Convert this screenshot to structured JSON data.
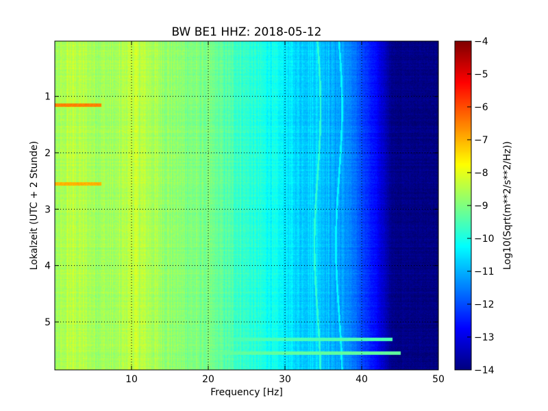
{
  "chart_data": {
    "type": "heatmap",
    "title": "BW BE1 HHZ: 2018-05-12",
    "xlabel": "Frequency [Hz]",
    "ylabel": "Lokalzeit (UTC + 2 Stunde)",
    "xlim": [
      0,
      50
    ],
    "ylim": [
      5.85,
      0.02
    ],
    "x_ticks": [
      10,
      20,
      30,
      40,
      50
    ],
    "x_tick_labels": [
      "10",
      "20",
      "30",
      "40",
      "50"
    ],
    "y_ticks": [
      1,
      2,
      3,
      4,
      5
    ],
    "y_tick_labels": [
      "1",
      "2",
      "3",
      "4",
      "5"
    ],
    "y_inverted": true,
    "grid": true,
    "colormap": "jet",
    "colorbar": {
      "label": "Log10(Sqrt(m**2/s**2/Hz))",
      "range": [
        -14,
        -4
      ],
      "ticks": [
        -4,
        -5,
        -6,
        -7,
        -8,
        -9,
        -10,
        -11,
        -12,
        -13,
        -14
      ],
      "tick_labels": [
        "−4",
        "−5",
        "−6",
        "−7",
        "−8",
        "−9",
        "−10",
        "−11",
        "−12",
        "−13",
        "−14"
      ]
    },
    "frequency_profile": [
      {
        "freq": 0,
        "value": -8.8
      },
      {
        "freq": 2,
        "value": -8.4
      },
      {
        "freq": 5,
        "value": -8.6
      },
      {
        "freq": 8,
        "value": -8.7
      },
      {
        "freq": 10,
        "value": -8.3
      },
      {
        "freq": 12,
        "value": -8.5
      },
      {
        "freq": 15,
        "value": -8.8
      },
      {
        "freq": 18,
        "value": -9.0
      },
      {
        "freq": 20,
        "value": -9.1
      },
      {
        "freq": 23,
        "value": -9.5
      },
      {
        "freq": 26,
        "value": -9.9
      },
      {
        "freq": 28,
        "value": -10.1
      },
      {
        "freq": 30,
        "value": -10.4
      },
      {
        "freq": 32,
        "value": -10.7
      },
      {
        "freq": 34,
        "value": -10.6
      },
      {
        "freq": 36,
        "value": -11.0
      },
      {
        "freq": 38,
        "value": -11.3
      },
      {
        "freq": 40,
        "value": -12.0
      },
      {
        "freq": 42,
        "value": -12.8
      },
      {
        "freq": 43,
        "value": -13.4
      },
      {
        "freq": 44,
        "value": -13.9
      },
      {
        "freq": 50,
        "value": -14.0
      }
    ],
    "time_bands": [
      {
        "time": 1.15,
        "freq_range": [
          0,
          6
        ],
        "value": -6.5
      },
      {
        "time": 2.55,
        "freq_range": [
          0,
          6
        ],
        "value": -7.0
      },
      {
        "time": 5.3,
        "freq_range": [
          0,
          44
        ],
        "value": -9.5
      },
      {
        "time": 5.55,
        "freq_range": [
          0,
          45
        ],
        "value": -9.3
      }
    ],
    "frequency_lines": [
      {
        "freq": 34.2,
        "value": -9.8
      },
      {
        "freq": 37.0,
        "value": -10.3
      }
    ]
  }
}
